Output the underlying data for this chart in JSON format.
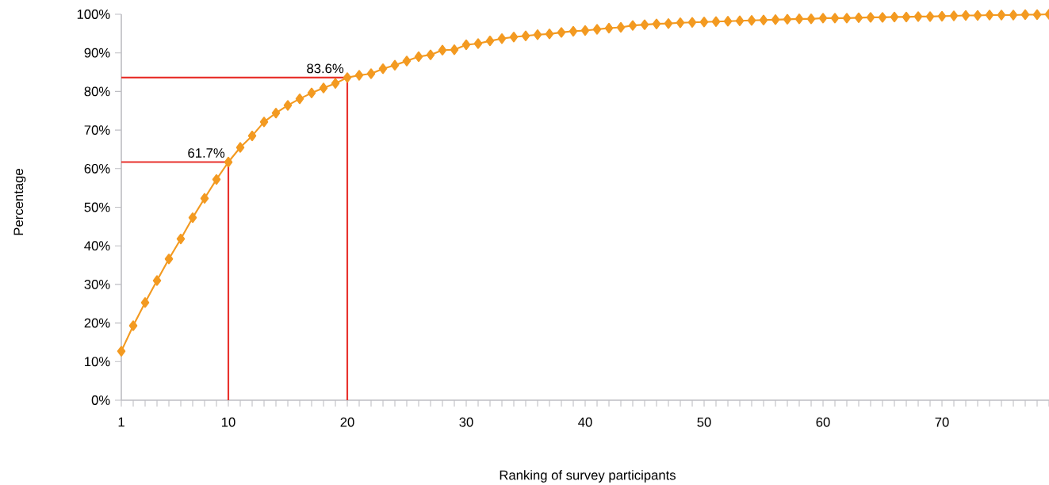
{
  "chart_data": {
    "type": "line",
    "xlabel": "Ranking of survey participants",
    "ylabel": "Percentage",
    "x": [
      1,
      2,
      3,
      4,
      5,
      6,
      7,
      8,
      9,
      10,
      11,
      12,
      13,
      14,
      15,
      16,
      17,
      18,
      19,
      20,
      21,
      22,
      23,
      24,
      25,
      26,
      27,
      28,
      29,
      30,
      31,
      32,
      33,
      34,
      35,
      36,
      37,
      38,
      39,
      40,
      41,
      42,
      43,
      44,
      45,
      46,
      47,
      48,
      49,
      50,
      51,
      52,
      53,
      54,
      55,
      56,
      57,
      58,
      59,
      60,
      61,
      62,
      63,
      64,
      65,
      66,
      67,
      68,
      69,
      70,
      71,
      72,
      73,
      74,
      75,
      76,
      77,
      78,
      79
    ],
    "series": [
      {
        "color": "#f39a21",
        "values": [
          12.7,
          19.3,
          25.3,
          31.0,
          36.6,
          41.8,
          47.3,
          52.3,
          57.2,
          61.7,
          65.5,
          68.5,
          72.1,
          74.4,
          76.4,
          78.1,
          79.6,
          80.9,
          82.1,
          83.6,
          84.2,
          84.6,
          85.9,
          86.8,
          87.9,
          89.0,
          89.5,
          90.7,
          90.8,
          92.1,
          92.4,
          93.1,
          93.7,
          94.1,
          94.4,
          94.7,
          94.9,
          95.3,
          95.6,
          95.8,
          96.1,
          96.4,
          96.6,
          97.1,
          97.3,
          97.5,
          97.6,
          97.8,
          97.9,
          98.0,
          98.1,
          98.2,
          98.3,
          98.4,
          98.5,
          98.6,
          98.7,
          98.8,
          98.8,
          99.0,
          99.0,
          99.0,
          99.1,
          99.2,
          99.2,
          99.3,
          99.3,
          99.4,
          99.4,
          99.5,
          99.6,
          99.7,
          99.7,
          99.8,
          99.8,
          99.8,
          99.9,
          99.9,
          100
        ]
      }
    ],
    "marker": "diamond",
    "line_style": "solid",
    "xlim": [
      1,
      79
    ],
    "ylim": [
      0,
      100
    ],
    "xticks": [
      1,
      {
        "value": 2,
        "label": null
      },
      {
        "value": 3,
        "label": null
      },
      {
        "value": 4,
        "label": null
      },
      {
        "value": 5,
        "label": null
      },
      {
        "value": 6,
        "label": null
      },
      {
        "value": 7,
        "label": null
      },
      {
        "value": 8,
        "label": null
      },
      {
        "value": 9,
        "label": null
      },
      10,
      {
        "value": 11,
        "label": null
      },
      {
        "value": 12,
        "label": null
      },
      {
        "value": 13,
        "label": null
      },
      {
        "value": 14,
        "label": null
      },
      {
        "value": 15,
        "label": null
      },
      {
        "value": 16,
        "label": null
      },
      {
        "value": 17,
        "label": null
      },
      {
        "value": 18,
        "label": null
      },
      {
        "value": 19,
        "label": null
      },
      20,
      {
        "value": 21,
        "label": null
      },
      {
        "value": 22,
        "label": null
      },
      {
        "value": 23,
        "label": null
      },
      {
        "value": 24,
        "label": null
      },
      {
        "value": 25,
        "label": null
      },
      {
        "value": 26,
        "label": null
      },
      {
        "value": 27,
        "label": null
      },
      {
        "value": 28,
        "label": null
      },
      {
        "value": 29,
        "label": null
      },
      30,
      {
        "value": 31,
        "label": null
      },
      {
        "value": 32,
        "label": null
      },
      {
        "value": 33,
        "label": null
      },
      {
        "value": 34,
        "label": null
      },
      {
        "value": 35,
        "label": null
      },
      {
        "value": 36,
        "label": null
      },
      {
        "value": 37,
        "label": null
      },
      {
        "value": 38,
        "label": null
      },
      {
        "value": 39,
        "label": null
      },
      40,
      {
        "value": 41,
        "label": null
      },
      {
        "value": 42,
        "label": null
      },
      {
        "value": 43,
        "label": null
      },
      {
        "value": 44,
        "label": null
      },
      {
        "value": 45,
        "label": null
      },
      {
        "value": 46,
        "label": null
      },
      {
        "value": 47,
        "label": null
      },
      {
        "value": 48,
        "label": null
      },
      {
        "value": 49,
        "label": null
      },
      50,
      {
        "value": 51,
        "label": null
      },
      {
        "value": 52,
        "label": null
      },
      {
        "value": 53,
        "label": null
      },
      {
        "value": 54,
        "label": null
      },
      {
        "value": 55,
        "label": null
      },
      {
        "value": 56,
        "label": null
      },
      {
        "value": 57,
        "label": null
      },
      {
        "value": 58,
        "label": null
      },
      {
        "value": 59,
        "label": null
      },
      60,
      {
        "value": 61,
        "label": null
      },
      {
        "value": 62,
        "label": null
      },
      {
        "value": 63,
        "label": null
      },
      {
        "value": 64,
        "label": null
      },
      {
        "value": 65,
        "label": null
      },
      {
        "value": 66,
        "label": null
      },
      {
        "value": 67,
        "label": null
      },
      {
        "value": 68,
        "label": null
      },
      {
        "value": 69,
        "label": null
      },
      70,
      {
        "value": 71,
        "label": null
      },
      {
        "value": 72,
        "label": null
      },
      {
        "value": 73,
        "label": null
      },
      {
        "value": 74,
        "label": null
      },
      {
        "value": 75,
        "label": null
      },
      {
        "value": 76,
        "label": null
      },
      {
        "value": 77,
        "label": null
      },
      {
        "value": 78,
        "label": null
      },
      {
        "value": 79,
        "label": null
      }
    ],
    "yticks": [
      {
        "value": 0,
        "label": "0%"
      },
      {
        "value": 10,
        "label": "10%"
      },
      {
        "value": 20,
        "label": "20%"
      },
      {
        "value": 30,
        "label": "30%"
      },
      {
        "value": 40,
        "label": "40%"
      },
      {
        "value": 50,
        "label": "50%"
      },
      {
        "value": 60,
        "label": "60%"
      },
      {
        "value": 70,
        "label": "70%"
      },
      {
        "value": 80,
        "label": "80%"
      },
      {
        "value": 90,
        "label": "90%"
      },
      {
        "value": 100,
        "label": "100%"
      }
    ],
    "ref_lines": [
      {
        "axis": "x",
        "value": 10,
        "color": "#e8322d"
      },
      {
        "axis": "y",
        "value": 61.7,
        "color": "#e8322d"
      },
      {
        "axis": "x",
        "value": 20,
        "color": "#e8322d"
      },
      {
        "axis": "y",
        "value": 83.6,
        "color": "#e8322d"
      }
    ],
    "annotations": [
      {
        "text": "61.7%",
        "x": 10,
        "y": 61.7
      },
      {
        "text": "83.6%",
        "x": 20,
        "y": 83.6
      }
    ],
    "grid": false
  }
}
